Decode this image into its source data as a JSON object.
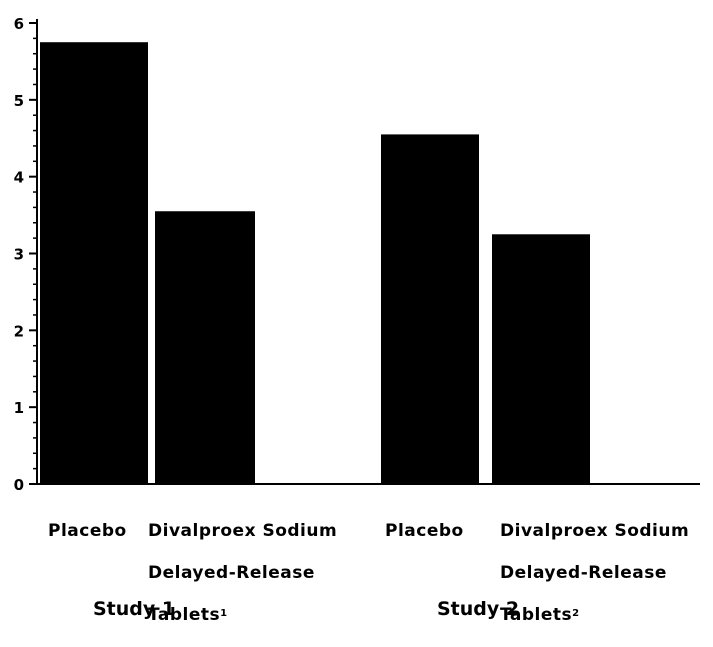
{
  "chart_data": {
    "type": "bar",
    "ylim": [
      0,
      6
    ],
    "y_ticks": [
      "0",
      "1",
      "2",
      "3",
      "4",
      "5",
      "6"
    ],
    "groups": [
      {
        "study_label": "Study 1",
        "bars": [
          {
            "category_lines": [
              "Placebo"
            ],
            "superscript": "",
            "value": 5.75
          },
          {
            "category_lines": [
              "Divalproex Sodium",
              "Delayed-Release",
              "Tablets"
            ],
            "superscript": "1",
            "value": 3.55
          }
        ]
      },
      {
        "study_label": "Study 2",
        "bars": [
          {
            "category_lines": [
              "Placebo"
            ],
            "superscript": "",
            "value": 4.55
          },
          {
            "category_lines": [
              "Divalproex Sodium",
              "Delayed-Release",
              "Tablets"
            ],
            "superscript": "2",
            "value": 3.25
          }
        ]
      }
    ],
    "bar_color": "#000000",
    "grid": false
  }
}
